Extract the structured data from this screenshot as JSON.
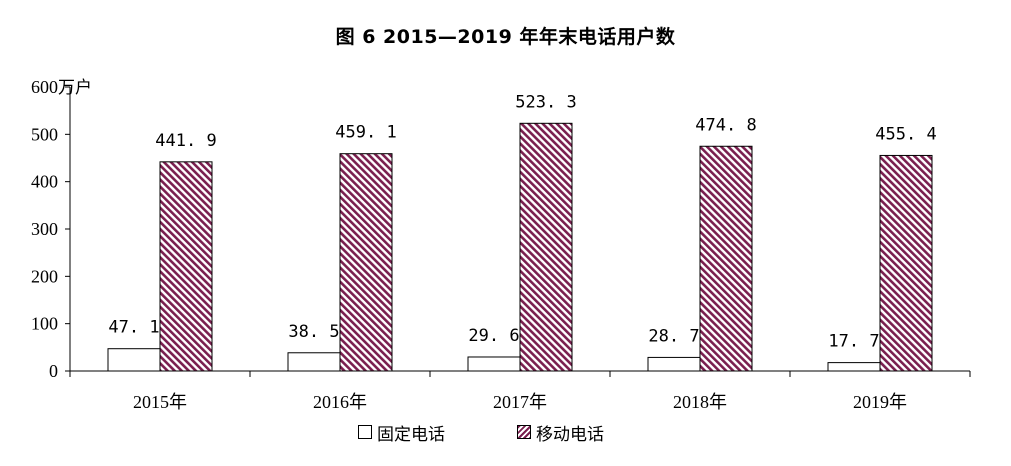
{
  "chart_data": {
    "type": "bar",
    "title": "图 6  2015—2019 年年末电话用户数",
    "ylabel": "万户",
    "ylim": [
      0,
      600
    ],
    "yticks": [
      "0",
      "100",
      "200",
      "300",
      "400",
      "500",
      "600"
    ],
    "categories": [
      "2015年",
      "2016年",
      "2017年",
      "2018年",
      "2019年"
    ],
    "series": [
      {
        "name": "固定电话",
        "values": [
          47.1,
          38.5,
          29.6,
          28.7,
          17.7
        ],
        "labels": [
          "47. 1",
          "38. 5",
          "29. 6",
          "28. 7",
          "17. 7"
        ],
        "color": "#ffffff"
      },
      {
        "name": "移动电话",
        "values": [
          441.9,
          459.1,
          523.3,
          474.8,
          455.4
        ],
        "labels": [
          "441. 9",
          "459. 1",
          "523. 3",
          "474. 8",
          "455. 4"
        ],
        "color": "#7a1f4f"
      }
    ],
    "legend_position": "bottom",
    "grid": false
  }
}
